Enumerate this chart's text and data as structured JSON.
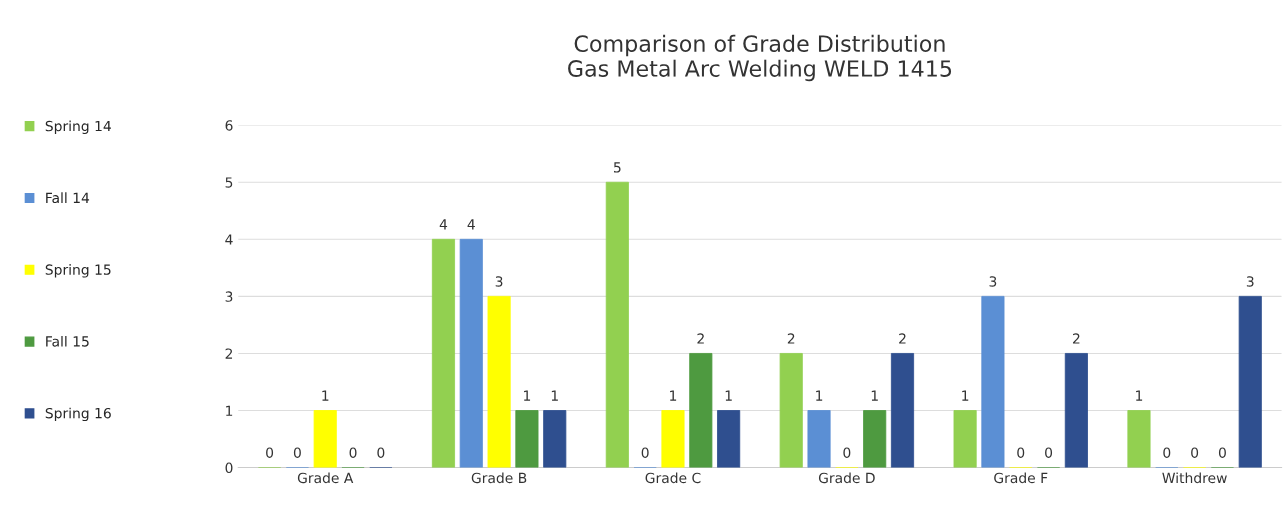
{
  "chart_data": {
    "type": "bar",
    "title": "Comparison of Grade Distribution\nGas Metal Arc Welding WELD 1415",
    "categories": [
      "Grade A",
      "Grade B",
      "Grade C",
      "Grade D",
      "Grade F",
      "Withdrew"
    ],
    "series": [
      {
        "name": "Spring 14",
        "color": "#92d050",
        "values": [
          0,
          4,
          5,
          2,
          1,
          1
        ]
      },
      {
        "name": "Fall 14",
        "color": "#5b8fd4",
        "values": [
          0,
          4,
          0,
          1,
          3,
          0
        ]
      },
      {
        "name": "Spring 15",
        "color": "#ffff00",
        "values": [
          1,
          3,
          1,
          0,
          0,
          0
        ]
      },
      {
        "name": "Fall 15",
        "color": "#4e9a40",
        "values": [
          0,
          1,
          2,
          1,
          0,
          0
        ]
      },
      {
        "name": "Spring 16",
        "color": "#2f4f8f",
        "values": [
          0,
          1,
          1,
          2,
          2,
          3
        ]
      }
    ],
    "ylim": [
      0,
      6
    ],
    "yticks": [
      0,
      1,
      2,
      3,
      4,
      5,
      6
    ],
    "grid": "y",
    "legend": "left",
    "data_labels": true
  }
}
